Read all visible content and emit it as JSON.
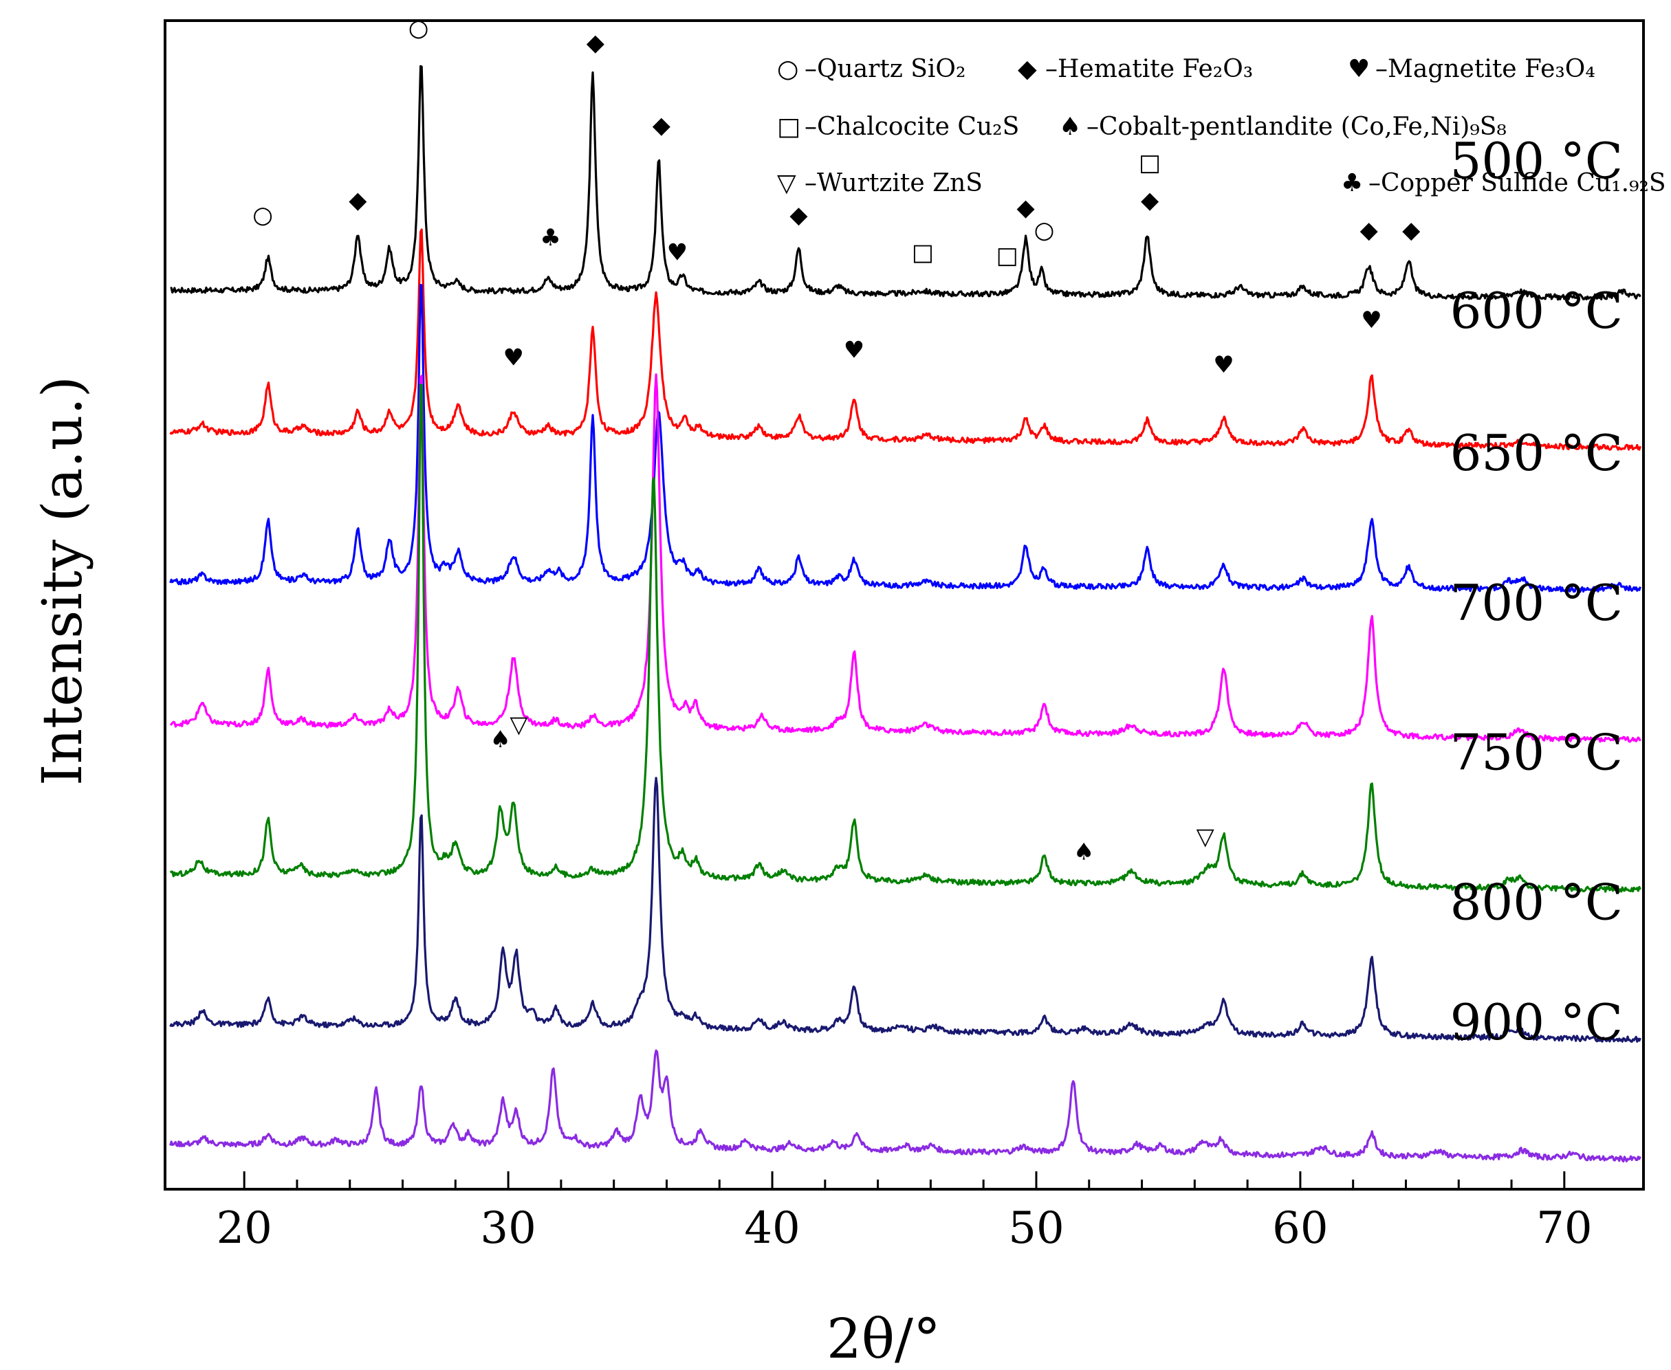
{
  "chart_data": {
    "type": "line",
    "title": "",
    "xlabel": "2θ/°",
    "ylabel": "Intensity (a.u.)",
    "xlim": [
      17,
      73
    ],
    "ylim": [
      0,
      7.8
    ],
    "xticks": [
      20,
      30,
      40,
      50,
      60,
      70
    ],
    "xtick_labels": [
      "20",
      "30",
      "40",
      "50",
      "60",
      "70"
    ],
    "legend": {
      "position": "top-right",
      "entries": [
        {
          "id": "quartz",
          "symbol": "○",
          "label": "–Quartz SiO₂"
        },
        {
          "id": "hematite",
          "symbol": "◆",
          "label": "–Hematite Fe₂O₃"
        },
        {
          "id": "magnetite",
          "symbol": "♥",
          "label": "–Magnetite Fe₃O₄"
        },
        {
          "id": "chalcocite",
          "symbol": "□",
          "label": "–Chalcocite Cu₂S"
        },
        {
          "id": "pentlandite",
          "symbol": "♠",
          "label": "–Cobalt-pentlandite (Co,Fe,Ni)₉S₈"
        },
        {
          "id": "wurtzite",
          "symbol": "▽",
          "label": "–Wurtzite ZnS"
        },
        {
          "id": "coppersulfide",
          "symbol": "♣",
          "label": "–Copper Sulfide Cu₁.₉₂S"
        }
      ]
    },
    "series": [
      {
        "name": "500 °C",
        "color": "#000000",
        "offset": 6.0,
        "start": 0.0,
        "end": -0.05,
        "peaks": [
          [
            20.9,
            0.22,
            0.14
          ],
          [
            24.3,
            0.38,
            0.14
          ],
          [
            25.5,
            0.27,
            0.15
          ],
          [
            26.7,
            1.55,
            0.12
          ],
          [
            28.0,
            0.06,
            0.2
          ],
          [
            31.5,
            0.08,
            0.2
          ],
          [
            33.2,
            1.45,
            0.13
          ],
          [
            35.7,
            0.88,
            0.13
          ],
          [
            36.6,
            0.1,
            0.15
          ],
          [
            39.5,
            0.07,
            0.2
          ],
          [
            41.0,
            0.3,
            0.14
          ],
          [
            42.5,
            0.05,
            0.18
          ],
          [
            45.7,
            0.02,
            0.3
          ],
          [
            49.6,
            0.37,
            0.14
          ],
          [
            50.2,
            0.15,
            0.12
          ],
          [
            54.2,
            0.4,
            0.15
          ],
          [
            57.7,
            0.06,
            0.2
          ],
          [
            60.1,
            0.06,
            0.2
          ],
          [
            62.6,
            0.2,
            0.18
          ],
          [
            64.1,
            0.24,
            0.16
          ],
          [
            68.3,
            0.04,
            0.3
          ],
          [
            72.2,
            0.04,
            0.3
          ]
        ]
      },
      {
        "name": "600 °C",
        "color": "#ff0000",
        "offset": 5.0,
        "start": 0.05,
        "end": -0.05,
        "peaks": [
          [
            18.4,
            0.06,
            0.2
          ],
          [
            20.9,
            0.33,
            0.14
          ],
          [
            22.2,
            0.05,
            0.2
          ],
          [
            24.3,
            0.15,
            0.15
          ],
          [
            25.5,
            0.15,
            0.15
          ],
          [
            26.7,
            1.4,
            0.12
          ],
          [
            28.1,
            0.2,
            0.18
          ],
          [
            30.2,
            0.16,
            0.2
          ],
          [
            31.5,
            0.06,
            0.18
          ],
          [
            33.2,
            0.72,
            0.14
          ],
          [
            35.6,
            0.95,
            0.2
          ],
          [
            36.7,
            0.1,
            0.15
          ],
          [
            37.2,
            0.06,
            0.15
          ],
          [
            39.5,
            0.08,
            0.18
          ],
          [
            41.0,
            0.15,
            0.16
          ],
          [
            43.1,
            0.26,
            0.16
          ],
          [
            45.9,
            0.03,
            0.3
          ],
          [
            49.6,
            0.14,
            0.16
          ],
          [
            50.3,
            0.1,
            0.15
          ],
          [
            54.2,
            0.15,
            0.16
          ],
          [
            57.1,
            0.17,
            0.18
          ],
          [
            60.1,
            0.1,
            0.18
          ],
          [
            62.7,
            0.45,
            0.17
          ],
          [
            64.1,
            0.1,
            0.17
          ],
          [
            68.3,
            0.03,
            0.3
          ]
        ]
      },
      {
        "name": "650 °C",
        "color": "#0000ff",
        "offset": 4.05,
        "start": 0.0,
        "end": -0.05,
        "peaks": [
          [
            18.4,
            0.05,
            0.2
          ],
          [
            20.9,
            0.42,
            0.14
          ],
          [
            22.2,
            0.05,
            0.2
          ],
          [
            24.3,
            0.35,
            0.14
          ],
          [
            25.5,
            0.28,
            0.15
          ],
          [
            26.7,
            2.05,
            0.12
          ],
          [
            27.6,
            0.08,
            0.15
          ],
          [
            28.1,
            0.2,
            0.18
          ],
          [
            30.2,
            0.18,
            0.2
          ],
          [
            31.5,
            0.08,
            0.18
          ],
          [
            31.9,
            0.07,
            0.15
          ],
          [
            33.2,
            1.12,
            0.13
          ],
          [
            35.7,
            1.15,
            0.22
          ],
          [
            36.6,
            0.1,
            0.15
          ],
          [
            37.2,
            0.07,
            0.15
          ],
          [
            39.5,
            0.1,
            0.18
          ],
          [
            41.0,
            0.18,
            0.16
          ],
          [
            42.5,
            0.05,
            0.2
          ],
          [
            43.1,
            0.17,
            0.16
          ],
          [
            45.8,
            0.03,
            0.3
          ],
          [
            49.6,
            0.27,
            0.15
          ],
          [
            50.3,
            0.12,
            0.15
          ],
          [
            54.2,
            0.26,
            0.16
          ],
          [
            57.1,
            0.15,
            0.18
          ],
          [
            60.1,
            0.06,
            0.2
          ],
          [
            62.7,
            0.45,
            0.18
          ],
          [
            64.1,
            0.14,
            0.17
          ],
          [
            67.9,
            0.05,
            0.2
          ],
          [
            68.4,
            0.07,
            0.2
          ],
          [
            72.0,
            0.03,
            0.3
          ]
        ]
      },
      {
        "name": "700 °C",
        "color": "#ff00ff",
        "offset": 3.05,
        "start": 0.05,
        "end": -0.05,
        "peaks": [
          [
            18.4,
            0.15,
            0.18
          ],
          [
            20.9,
            0.38,
            0.14
          ],
          [
            22.2,
            0.04,
            0.2
          ],
          [
            24.2,
            0.06,
            0.2
          ],
          [
            25.5,
            0.1,
            0.16
          ],
          [
            26.7,
            2.4,
            0.12
          ],
          [
            28.1,
            0.24,
            0.18
          ],
          [
            30.2,
            0.46,
            0.2
          ],
          [
            31.8,
            0.05,
            0.18
          ],
          [
            33.2,
            0.08,
            0.16
          ],
          [
            35.6,
            2.35,
            0.18
          ],
          [
            36.7,
            0.1,
            0.15
          ],
          [
            37.1,
            0.14,
            0.15
          ],
          [
            39.6,
            0.1,
            0.18
          ],
          [
            42.5,
            0.06,
            0.2
          ],
          [
            43.1,
            0.54,
            0.15
          ],
          [
            45.8,
            0.05,
            0.3
          ],
          [
            50.3,
            0.2,
            0.16
          ],
          [
            53.6,
            0.06,
            0.3
          ],
          [
            57.1,
            0.45,
            0.18
          ],
          [
            60.1,
            0.1,
            0.2
          ],
          [
            62.7,
            0.8,
            0.17
          ],
          [
            68.3,
            0.06,
            0.25
          ]
        ]
      },
      {
        "name": "750 °C",
        "color": "#008000",
        "offset": 2.05,
        "start": 0.05,
        "end": -0.05,
        "peaks": [
          [
            18.3,
            0.1,
            0.18
          ],
          [
            20.9,
            0.38,
            0.14
          ],
          [
            22.1,
            0.07,
            0.2
          ],
          [
            24.1,
            0.04,
            0.2
          ],
          [
            26.7,
            3.4,
            0.11
          ],
          [
            27.6,
            0.06,
            0.15
          ],
          [
            28.0,
            0.2,
            0.18
          ],
          [
            29.7,
            0.42,
            0.16
          ],
          [
            30.2,
            0.46,
            0.17
          ],
          [
            31.8,
            0.06,
            0.18
          ],
          [
            33.2,
            0.05,
            0.18
          ],
          [
            35.5,
            2.7,
            0.18
          ],
          [
            36.6,
            0.12,
            0.15
          ],
          [
            37.1,
            0.1,
            0.15
          ],
          [
            39.5,
            0.1,
            0.18
          ],
          [
            40.4,
            0.06,
            0.2
          ],
          [
            42.5,
            0.08,
            0.2
          ],
          [
            43.1,
            0.4,
            0.15
          ],
          [
            45.8,
            0.04,
            0.3
          ],
          [
            50.3,
            0.18,
            0.16
          ],
          [
            53.6,
            0.08,
            0.3
          ],
          [
            56.5,
            0.1,
            0.3
          ],
          [
            57.1,
            0.32,
            0.18
          ],
          [
            60.1,
            0.08,
            0.2
          ],
          [
            62.7,
            0.68,
            0.17
          ],
          [
            67.9,
            0.05,
            0.2
          ],
          [
            68.3,
            0.06,
            0.2
          ]
        ]
      },
      {
        "name": "800 °C",
        "color": "#191970",
        "offset": 1.05,
        "start": 0.05,
        "end": -0.05,
        "peaks": [
          [
            18.4,
            0.1,
            0.16
          ],
          [
            20.9,
            0.18,
            0.14
          ],
          [
            22.2,
            0.06,
            0.2
          ],
          [
            24.1,
            0.05,
            0.2
          ],
          [
            26.7,
            1.45,
            0.11
          ],
          [
            28.0,
            0.18,
            0.18
          ],
          [
            29.8,
            0.48,
            0.16
          ],
          [
            30.3,
            0.46,
            0.16
          ],
          [
            30.9,
            0.08,
            0.16
          ],
          [
            31.8,
            0.12,
            0.16
          ],
          [
            33.2,
            0.16,
            0.16
          ],
          [
            35.0,
            0.1,
            0.2
          ],
          [
            35.6,
            1.68,
            0.17
          ],
          [
            36.6,
            0.06,
            0.15
          ],
          [
            37.1,
            0.08,
            0.16
          ],
          [
            39.5,
            0.07,
            0.18
          ],
          [
            40.4,
            0.06,
            0.2
          ],
          [
            42.5,
            0.06,
            0.2
          ],
          [
            43.1,
            0.3,
            0.15
          ],
          [
            44.9,
            0.04,
            0.25
          ],
          [
            46.1,
            0.04,
            0.25
          ],
          [
            50.3,
            0.1,
            0.18
          ],
          [
            51.8,
            0.03,
            0.25
          ],
          [
            53.6,
            0.06,
            0.3
          ],
          [
            56.5,
            0.06,
            0.3
          ],
          [
            57.1,
            0.22,
            0.18
          ],
          [
            60.1,
            0.08,
            0.2
          ],
          [
            62.7,
            0.52,
            0.18
          ],
          [
            67.9,
            0.04,
            0.2
          ],
          [
            68.3,
            0.05,
            0.2
          ]
        ]
      },
      {
        "name": "900 °C",
        "color": "#8a2be2",
        "offset": 0.25,
        "start": 0.05,
        "end": -0.05,
        "peaks": [
          [
            18.5,
            0.04,
            0.2
          ],
          [
            20.9,
            0.07,
            0.18
          ],
          [
            22.2,
            0.05,
            0.2
          ],
          [
            23.5,
            0.04,
            0.2
          ],
          [
            25.0,
            0.38,
            0.14
          ],
          [
            26.7,
            0.42,
            0.13
          ],
          [
            27.9,
            0.15,
            0.16
          ],
          [
            28.5,
            0.08,
            0.16
          ],
          [
            29.8,
            0.3,
            0.15
          ],
          [
            30.3,
            0.22,
            0.15
          ],
          [
            31.7,
            0.52,
            0.15
          ],
          [
            32.5,
            0.06,
            0.18
          ],
          [
            34.1,
            0.1,
            0.18
          ],
          [
            35.0,
            0.3,
            0.16
          ],
          [
            35.6,
            0.6,
            0.16
          ],
          [
            36.0,
            0.4,
            0.15
          ],
          [
            37.3,
            0.12,
            0.18
          ],
          [
            39.0,
            0.06,
            0.2
          ],
          [
            40.7,
            0.05,
            0.2
          ],
          [
            42.3,
            0.06,
            0.2
          ],
          [
            43.2,
            0.12,
            0.16
          ],
          [
            45.0,
            0.04,
            0.25
          ],
          [
            46.0,
            0.04,
            0.25
          ],
          [
            49.5,
            0.04,
            0.25
          ],
          [
            51.4,
            0.48,
            0.16
          ],
          [
            53.8,
            0.06,
            0.25
          ],
          [
            54.7,
            0.05,
            0.25
          ],
          [
            56.3,
            0.08,
            0.25
          ],
          [
            57.0,
            0.1,
            0.2
          ],
          [
            60.8,
            0.06,
            0.3
          ],
          [
            62.7,
            0.15,
            0.18
          ],
          [
            65.2,
            0.04,
            0.3
          ],
          [
            68.4,
            0.05,
            0.3
          ],
          [
            70.3,
            0.03,
            0.3
          ]
        ]
      }
    ],
    "annotations": [
      {
        "symbol": "○",
        "x": 20.7,
        "y": 6.45
      },
      {
        "symbol": "○",
        "x": 26.6,
        "y": 7.7
      },
      {
        "symbol": "○",
        "x": 50.3,
        "y": 6.35
      },
      {
        "symbol": "◆",
        "x": 24.3,
        "y": 6.55
      },
      {
        "symbol": "◆",
        "x": 33.3,
        "y": 7.6
      },
      {
        "symbol": "◆",
        "x": 35.8,
        "y": 7.05
      },
      {
        "symbol": "◆",
        "x": 41.0,
        "y": 6.45
      },
      {
        "symbol": "◆",
        "x": 49.6,
        "y": 6.5
      },
      {
        "symbol": "◆",
        "x": 54.3,
        "y": 6.55
      },
      {
        "symbol": "◆",
        "x": 62.6,
        "y": 6.35
      },
      {
        "symbol": "◆",
        "x": 64.2,
        "y": 6.35
      },
      {
        "symbol": "□",
        "x": 45.7,
        "y": 6.2
      },
      {
        "symbol": "□",
        "x": 48.9,
        "y": 6.18
      },
      {
        "symbol": "□",
        "x": 54.3,
        "y": 6.8
      },
      {
        "symbol": "♣",
        "x": 31.6,
        "y": 6.3
      },
      {
        "symbol": "♥",
        "x": 36.4,
        "y": 6.2
      },
      {
        "symbol": "♥",
        "x": 30.2,
        "y": 5.5
      },
      {
        "symbol": "♥",
        "x": 43.1,
        "y": 5.55
      },
      {
        "symbol": "♥",
        "x": 57.1,
        "y": 5.45
      },
      {
        "symbol": "♥",
        "x": 62.7,
        "y": 5.75
      },
      {
        "symbol": "♠",
        "x": 29.7,
        "y": 2.95
      },
      {
        "symbol": "▽",
        "x": 30.4,
        "y": 3.05
      },
      {
        "symbol": "♠",
        "x": 51.8,
        "y": 2.2
      },
      {
        "symbol": "▽",
        "x": 56.4,
        "y": 2.3
      }
    ]
  }
}
